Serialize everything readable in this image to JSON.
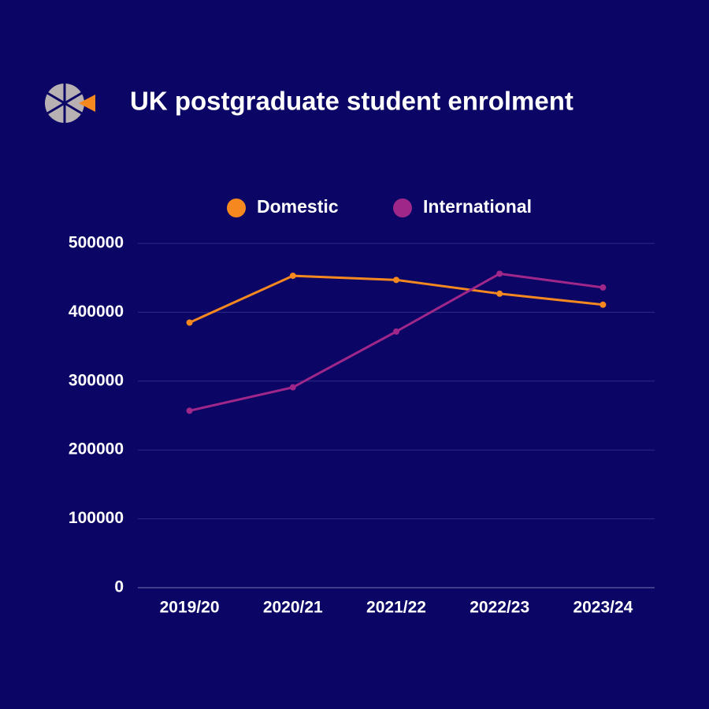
{
  "chart_data": {
    "type": "line",
    "title": "UK postgraduate student enrolment",
    "categories": [
      "2019/20",
      "2020/21",
      "2021/22",
      "2022/23",
      "2023/24"
    ],
    "series": [
      {
        "name": "Domestic",
        "color": "#f5891f",
        "values": [
          385000,
          453000,
          447000,
          427000,
          411000
        ]
      },
      {
        "name": "International",
        "color": "#a0278a",
        "values": [
          257000,
          291000,
          372000,
          456000,
          436000
        ]
      }
    ],
    "ylim": [
      0,
      500000
    ],
    "yticks": [
      0,
      100000,
      200000,
      300000,
      400000,
      500000
    ],
    "grid": true,
    "legend": "top"
  }
}
